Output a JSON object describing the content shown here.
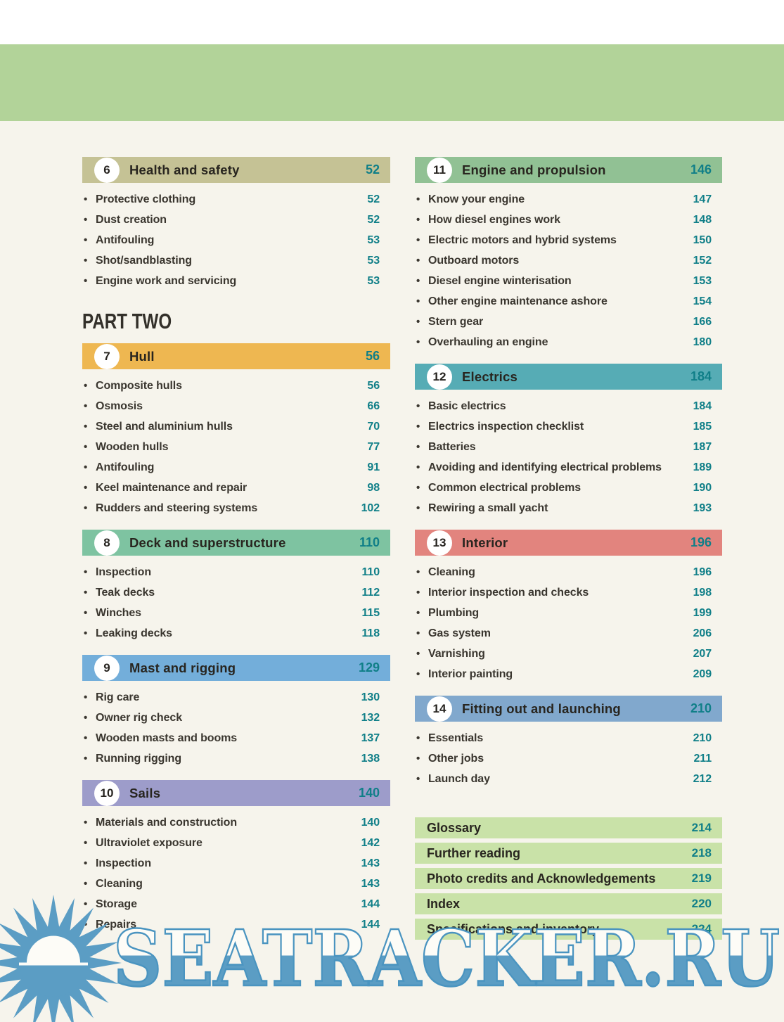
{
  "page": {
    "background": "#f6f4ec",
    "top_band_color": "#b2d399",
    "number_color": "#107f88",
    "text_color": "#3a362f"
  },
  "bullet_char": "•",
  "watermark": {
    "text": "SEATRACKER.RU",
    "color": "#5b9dc4"
  },
  "columns": {
    "left": [
      {
        "number": "6",
        "title": "Health and safety",
        "page": "52",
        "color": "#c5c295",
        "items": [
          {
            "label": "Protective clothing",
            "page": "52"
          },
          {
            "label": "Dust creation",
            "page": "52"
          },
          {
            "label": "Antifouling",
            "page": "53"
          },
          {
            "label": "Shot/sandblasting",
            "page": "53"
          },
          {
            "label": "Engine work and servicing",
            "page": "53"
          }
        ]
      },
      {
        "pre_heading": "PART TWO",
        "number": "7",
        "title": "Hull",
        "page": "56",
        "color": "#eeb751",
        "items": [
          {
            "label": "Composite hulls",
            "page": "56"
          },
          {
            "label": "Osmosis",
            "page": "66"
          },
          {
            "label": "Steel and aluminium hulls",
            "page": "70"
          },
          {
            "label": "Wooden hulls",
            "page": "77"
          },
          {
            "label": "Antifouling",
            "page": "91"
          },
          {
            "label": "Keel maintenance and repair",
            "page": "98"
          },
          {
            "label": "Rudders and steering systems",
            "page": "102"
          }
        ]
      },
      {
        "number": "8",
        "title": "Deck and superstructure",
        "page": "110",
        "color": "#7ec3a1",
        "items": [
          {
            "label": "Inspection",
            "page": "110"
          },
          {
            "label": "Teak decks",
            "page": "112"
          },
          {
            "label": "Winches",
            "page": "115"
          },
          {
            "label": "Leaking decks",
            "page": "118"
          }
        ]
      },
      {
        "number": "9",
        "title": "Mast and rigging",
        "page": "129",
        "color": "#73aeda",
        "items": [
          {
            "label": "Rig care",
            "page": "130"
          },
          {
            "label": "Owner rig check",
            "page": "132"
          },
          {
            "label": "Wooden masts and booms",
            "page": "137"
          },
          {
            "label": "Running rigging",
            "page": "138"
          }
        ]
      },
      {
        "number": "10",
        "title": "Sails",
        "page": "140",
        "color": "#9d9cca",
        "items": [
          {
            "label": "Materials and construction",
            "page": "140"
          },
          {
            "label": "Ultraviolet exposure",
            "page": "142"
          },
          {
            "label": "Inspection",
            "page": "143"
          },
          {
            "label": "Cleaning",
            "page": "143"
          },
          {
            "label": "Storage",
            "page": "144"
          },
          {
            "label": "Repairs",
            "page": "144"
          }
        ]
      }
    ],
    "right": [
      {
        "number": "11",
        "title": "Engine and propulsion",
        "page": "146",
        "color": "#91c194",
        "items": [
          {
            "label": "Know your engine",
            "page": "147"
          },
          {
            "label": "How diesel engines work",
            "page": "148"
          },
          {
            "label": "Electric motors and hybrid systems",
            "page": "150"
          },
          {
            "label": "Outboard motors",
            "page": "152"
          },
          {
            "label": "Diesel engine winterisation",
            "page": "153"
          },
          {
            "label": "Other engine maintenance ashore",
            "page": "154"
          },
          {
            "label": "Stern gear",
            "page": "166"
          },
          {
            "label": "Overhauling an engine",
            "page": "180"
          }
        ]
      },
      {
        "number": "12",
        "title": "Electrics",
        "page": "184",
        "color": "#56acb5",
        "items": [
          {
            "label": "Basic electrics",
            "page": "184"
          },
          {
            "label": "Electrics inspection checklist",
            "page": "185"
          },
          {
            "label": "Batteries",
            "page": "187"
          },
          {
            "label": "Avoiding and identifying electrical problems",
            "page": "189"
          },
          {
            "label": "Common electrical problems",
            "page": "190"
          },
          {
            "label": "Rewiring a small yacht",
            "page": "193"
          }
        ]
      },
      {
        "number": "13",
        "title": "Interior",
        "page": "196",
        "color": "#e2847e",
        "items": [
          {
            "label": "Cleaning",
            "page": "196"
          },
          {
            "label": "Interior inspection and checks",
            "page": "198"
          },
          {
            "label": "Plumbing",
            "page": "199"
          },
          {
            "label": "Gas system",
            "page": "206"
          },
          {
            "label": "Varnishing",
            "page": "207"
          },
          {
            "label": "Interior painting",
            "page": "209"
          }
        ]
      },
      {
        "number": "14",
        "title": "Fitting out and launching",
        "page": "210",
        "color": "#81a8cd",
        "items": [
          {
            "label": "Essentials",
            "page": "210"
          },
          {
            "label": "Other jobs",
            "page": "211"
          },
          {
            "label": "Launch day",
            "page": "212"
          }
        ]
      }
    ]
  },
  "end_matter": {
    "color": "#c9e2a8",
    "rows": [
      {
        "label": "Glossary",
        "page": "214"
      },
      {
        "label": "Further reading",
        "page": "218"
      },
      {
        "label": "Photo credits and Acknowledgements",
        "page": "219"
      },
      {
        "label": "Index",
        "page": "220"
      },
      {
        "label": "Specifications and inventory",
        "page": "224"
      }
    ]
  }
}
